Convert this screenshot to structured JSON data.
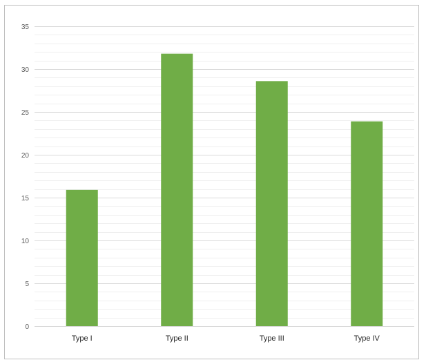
{
  "chart_data": {
    "type": "bar",
    "categories": [
      "Type I",
      "Type II",
      "Type III",
      "Type IV"
    ],
    "values": [
      15.9,
      31.8,
      28.6,
      23.9
    ],
    "title": "",
    "xlabel": "",
    "ylabel": "",
    "ylim": [
      0,
      35
    ],
    "yticks": [
      0,
      5,
      10,
      15,
      20,
      25,
      30,
      35
    ],
    "grid": true,
    "bar_color": "#70ad47",
    "gridline_color": "#d9d9d9",
    "minor_gridline_color": "#efefef"
  }
}
